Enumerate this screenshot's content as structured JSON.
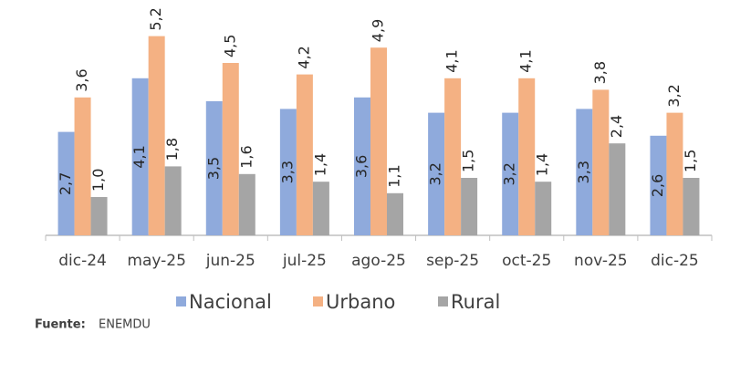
{
  "chart_data": {
    "type": "bar",
    "categories": [
      "dic-24",
      "may-25",
      "jun-25",
      "jul-25",
      "ago-25",
      "sep-25",
      "oct-25",
      "nov-25",
      "dic-25"
    ],
    "series": [
      {
        "name": "Nacional",
        "color": "#8faadc",
        "values": [
          2.7,
          4.1,
          3.5,
          3.3,
          3.6,
          3.2,
          3.2,
          3.3,
          2.6
        ],
        "value_labels": [
          "2,7",
          "4,1",
          "3,5",
          "3,3",
          "3,6",
          "3,2",
          "3,2",
          "3,3",
          "2,6"
        ]
      },
      {
        "name": "Urbano",
        "color": "#f4b183",
        "values": [
          3.6,
          5.2,
          4.5,
          4.2,
          4.9,
          4.1,
          4.1,
          3.8,
          3.2
        ],
        "value_labels": [
          "3,6",
          "5,2",
          "4,5",
          "4,2",
          "4,9",
          "4,1",
          "4,1",
          "3,8",
          "3,2"
        ]
      },
      {
        "name": "Rural",
        "color": "#a5a5a5",
        "values": [
          1.0,
          1.8,
          1.6,
          1.4,
          1.1,
          1.5,
          1.4,
          2.4,
          1.5
        ],
        "value_labels": [
          "1,0",
          "1,8",
          "1,6",
          "1,4",
          "1,1",
          "1,5",
          "1,4",
          "2,4",
          "1,5"
        ]
      }
    ],
    "source_label": "Fuente:",
    "source": "ENEMDU"
  }
}
